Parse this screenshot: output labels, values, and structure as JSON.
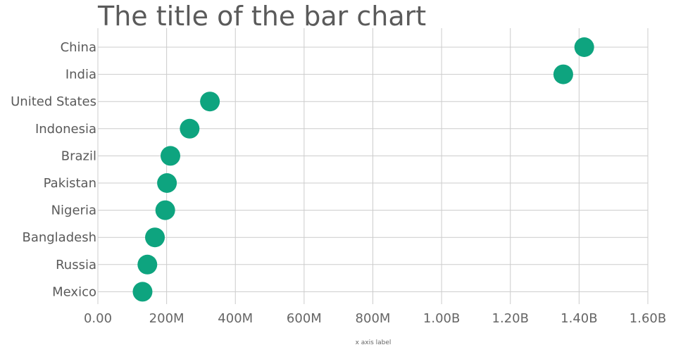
{
  "chart_data": {
    "type": "scatter",
    "title": "The title of the bar chart",
    "xlabel": "x axis label",
    "ylabel": "",
    "xlim": [
      0,
      1600000000
    ],
    "x_ticks": [
      0,
      200000000,
      400000000,
      600000000,
      800000000,
      1000000000,
      1200000000,
      1400000000,
      1600000000
    ],
    "x_tick_labels": [
      "0.00",
      "200M",
      "400M",
      "600M",
      "800M",
      "1.00B",
      "1.20B",
      "1.40B",
      "1.60B"
    ],
    "grid": true,
    "categories": [
      "China",
      "India",
      "United States",
      "Indonesia",
      "Brazil",
      "Pakistan",
      "Nigeria",
      "Bangladesh",
      "Russia",
      "Mexico"
    ],
    "values": [
      1415000000,
      1354000000,
      326000000,
      267000000,
      211000000,
      201000000,
      196000000,
      166000000,
      144000000,
      130000000
    ],
    "marker_color": "#0ea47f"
  }
}
